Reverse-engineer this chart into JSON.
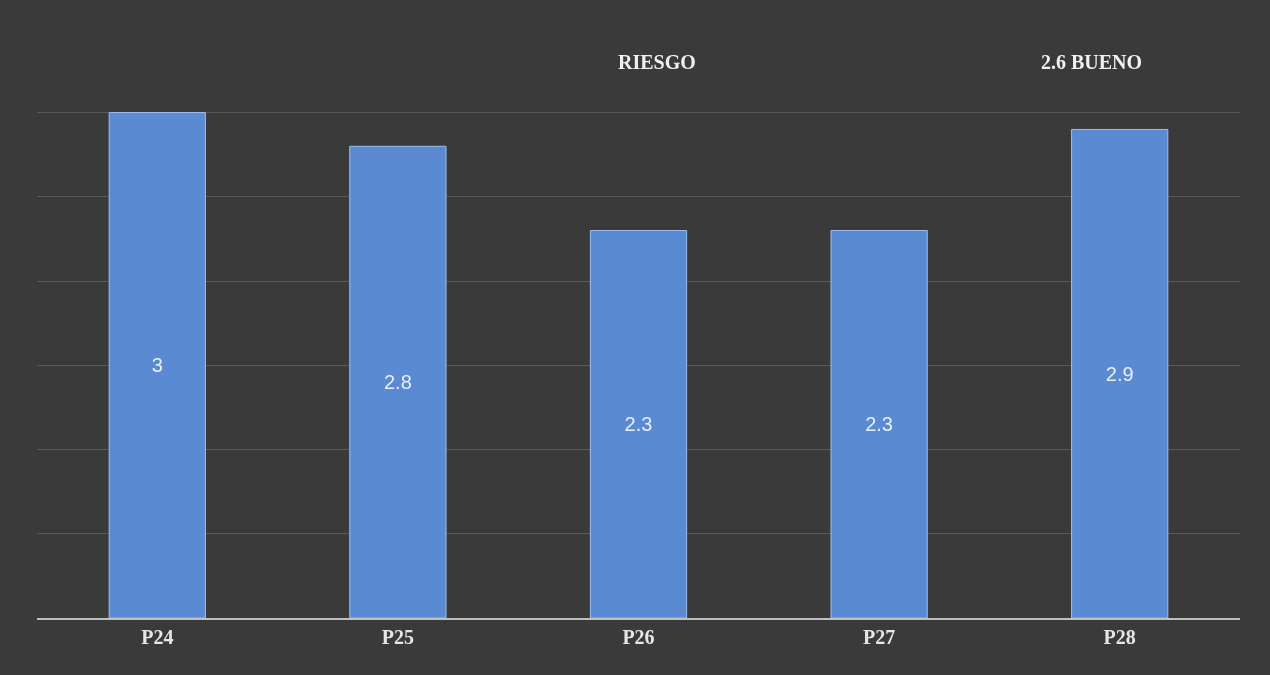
{
  "chart_data": {
    "type": "bar",
    "categories": [
      "P24",
      "P25",
      "P26",
      "P27",
      "P28"
    ],
    "values": [
      3,
      2.8,
      2.3,
      2.3,
      2.9
    ],
    "color": "#5a8ad2",
    "data_labels": true,
    "tick_labels": "x",
    "grid": "y",
    "annotations": [
      "RIESGO",
      "2.6 BUENO"
    ]
  }
}
